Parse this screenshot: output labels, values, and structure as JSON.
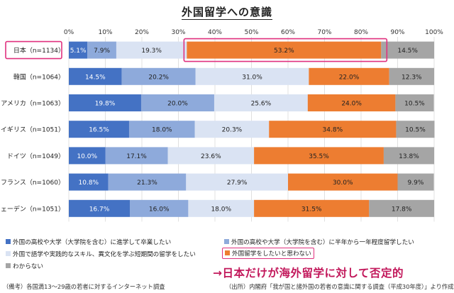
{
  "title": "外国留学への意識",
  "chart_data": {
    "type": "bar",
    "orientation": "horizontal",
    "stacked": true,
    "xlim": [
      0,
      100
    ],
    "x_ticks": [
      "0%",
      "10%",
      "20%",
      "30%",
      "40%",
      "50%",
      "60%",
      "70%",
      "80%",
      "90%",
      "100%"
    ],
    "categories": [
      "日本（n=1134）",
      "韓国（n=1064）",
      "アメリカ（n=1063）",
      "イギリス（n=1051）",
      "ドイツ（n=1049）",
      "フランス（n=1060）",
      "スウェーデン（n=1051）"
    ],
    "series": [
      {
        "name": "外国の高校や大学（大学院を含む）に進学して卒業したい",
        "color": "#4472c4",
        "values": [
          5.1,
          14.5,
          19.8,
          16.5,
          10.0,
          10.8,
          16.7
        ]
      },
      {
        "name": "外国の高校や大学（大学院を含む）に半年から一年程度留学したい",
        "color": "#8eaadb",
        "values": [
          7.9,
          20.2,
          20.0,
          18.0,
          17.1,
          21.3,
          16.0
        ]
      },
      {
        "name": "外国で語学や実践的なスキル、異文化を学ぶ短期間の留学をしたい",
        "color": "#dae3f3",
        "values": [
          19.3,
          31.0,
          25.6,
          20.3,
          23.6,
          27.9,
          18.0
        ]
      },
      {
        "name": "外国留学をしたいと思わない",
        "color": "#ed7d31",
        "values": [
          53.2,
          22.0,
          24.0,
          34.8,
          35.5,
          30.0,
          31.5
        ]
      },
      {
        "name": "わからない",
        "color": "#a5a5a5",
        "values": [
          14.5,
          12.3,
          10.5,
          10.5,
          13.8,
          9.9,
          17.8
        ]
      }
    ],
    "value_labels": [
      [
        "5.1%",
        "7.9%",
        "19.3%",
        "53.2%",
        "14.5%"
      ],
      [
        "14.5%",
        "20.2%",
        "31.0%",
        "22.0%",
        "12.3%"
      ],
      [
        "19.8%",
        "20.0%",
        "25.6%",
        "24.0%",
        "10.5%"
      ],
      [
        "16.5%",
        "18.0%",
        "20.3%",
        "34.8%",
        "10.5%"
      ],
      [
        "10.0%",
        "17.1%",
        "23.6%",
        "35.5%",
        "13.8%"
      ],
      [
        "10.8%",
        "21.3%",
        "27.9%",
        "30.0%",
        "9.9%"
      ],
      [
        "16.7%",
        "16.0%",
        "18.0%",
        "31.5%",
        "17.8%"
      ]
    ],
    "highlight_color": "#e0317e",
    "legend_placement": "bottom"
  },
  "conclusion": "→日本だけが海外留学に対して否定的",
  "footnote_left": "（備考）各国満13～29歳の若者に対するインターネット調査",
  "footnote_right": "（出所）内閣府「我が国と諸外国の若者の意識に関する調査（平成30年度）」より作成。"
}
